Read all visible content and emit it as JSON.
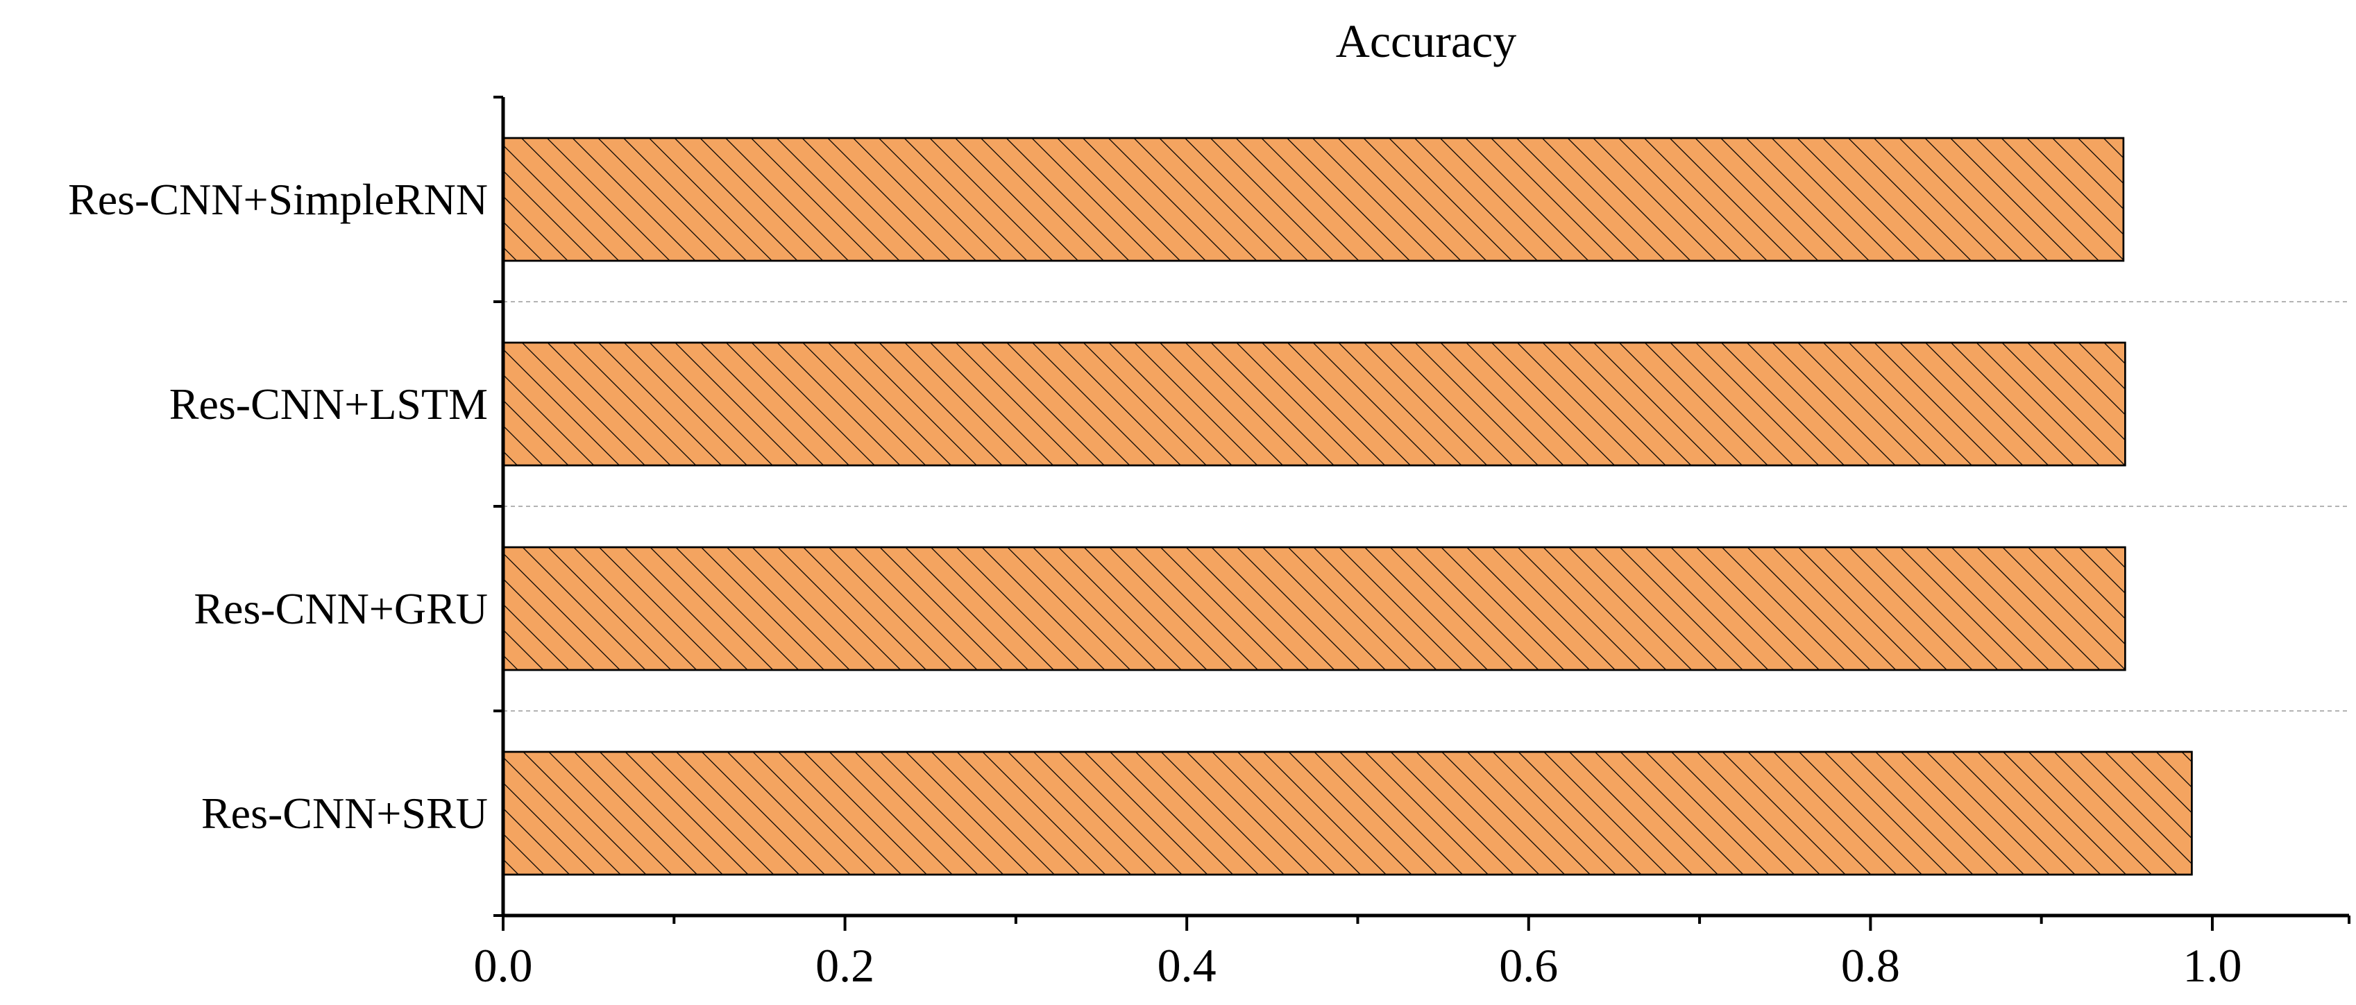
{
  "chart_data": {
    "type": "bar",
    "orientation": "horizontal",
    "title": "Accuracy",
    "xlabel": "",
    "ylabel": "",
    "categories": [
      "Res-CNN+SimpleRNN",
      "Res-CNN+LSTM",
      "Res-CNN+GRU",
      "Res-CNN+SRU"
    ],
    "values": [
      0.948,
      0.949,
      0.949,
      0.988
    ],
    "xlim": [
      0.0,
      1.08
    ],
    "xticks": [
      "0.0",
      "0.2",
      "0.4",
      "0.6",
      "0.8",
      "1.0"
    ],
    "grid": "dashed separators between categories",
    "legend": "none",
    "bar_color": "#f4a460",
    "hatch": "diagonal"
  }
}
